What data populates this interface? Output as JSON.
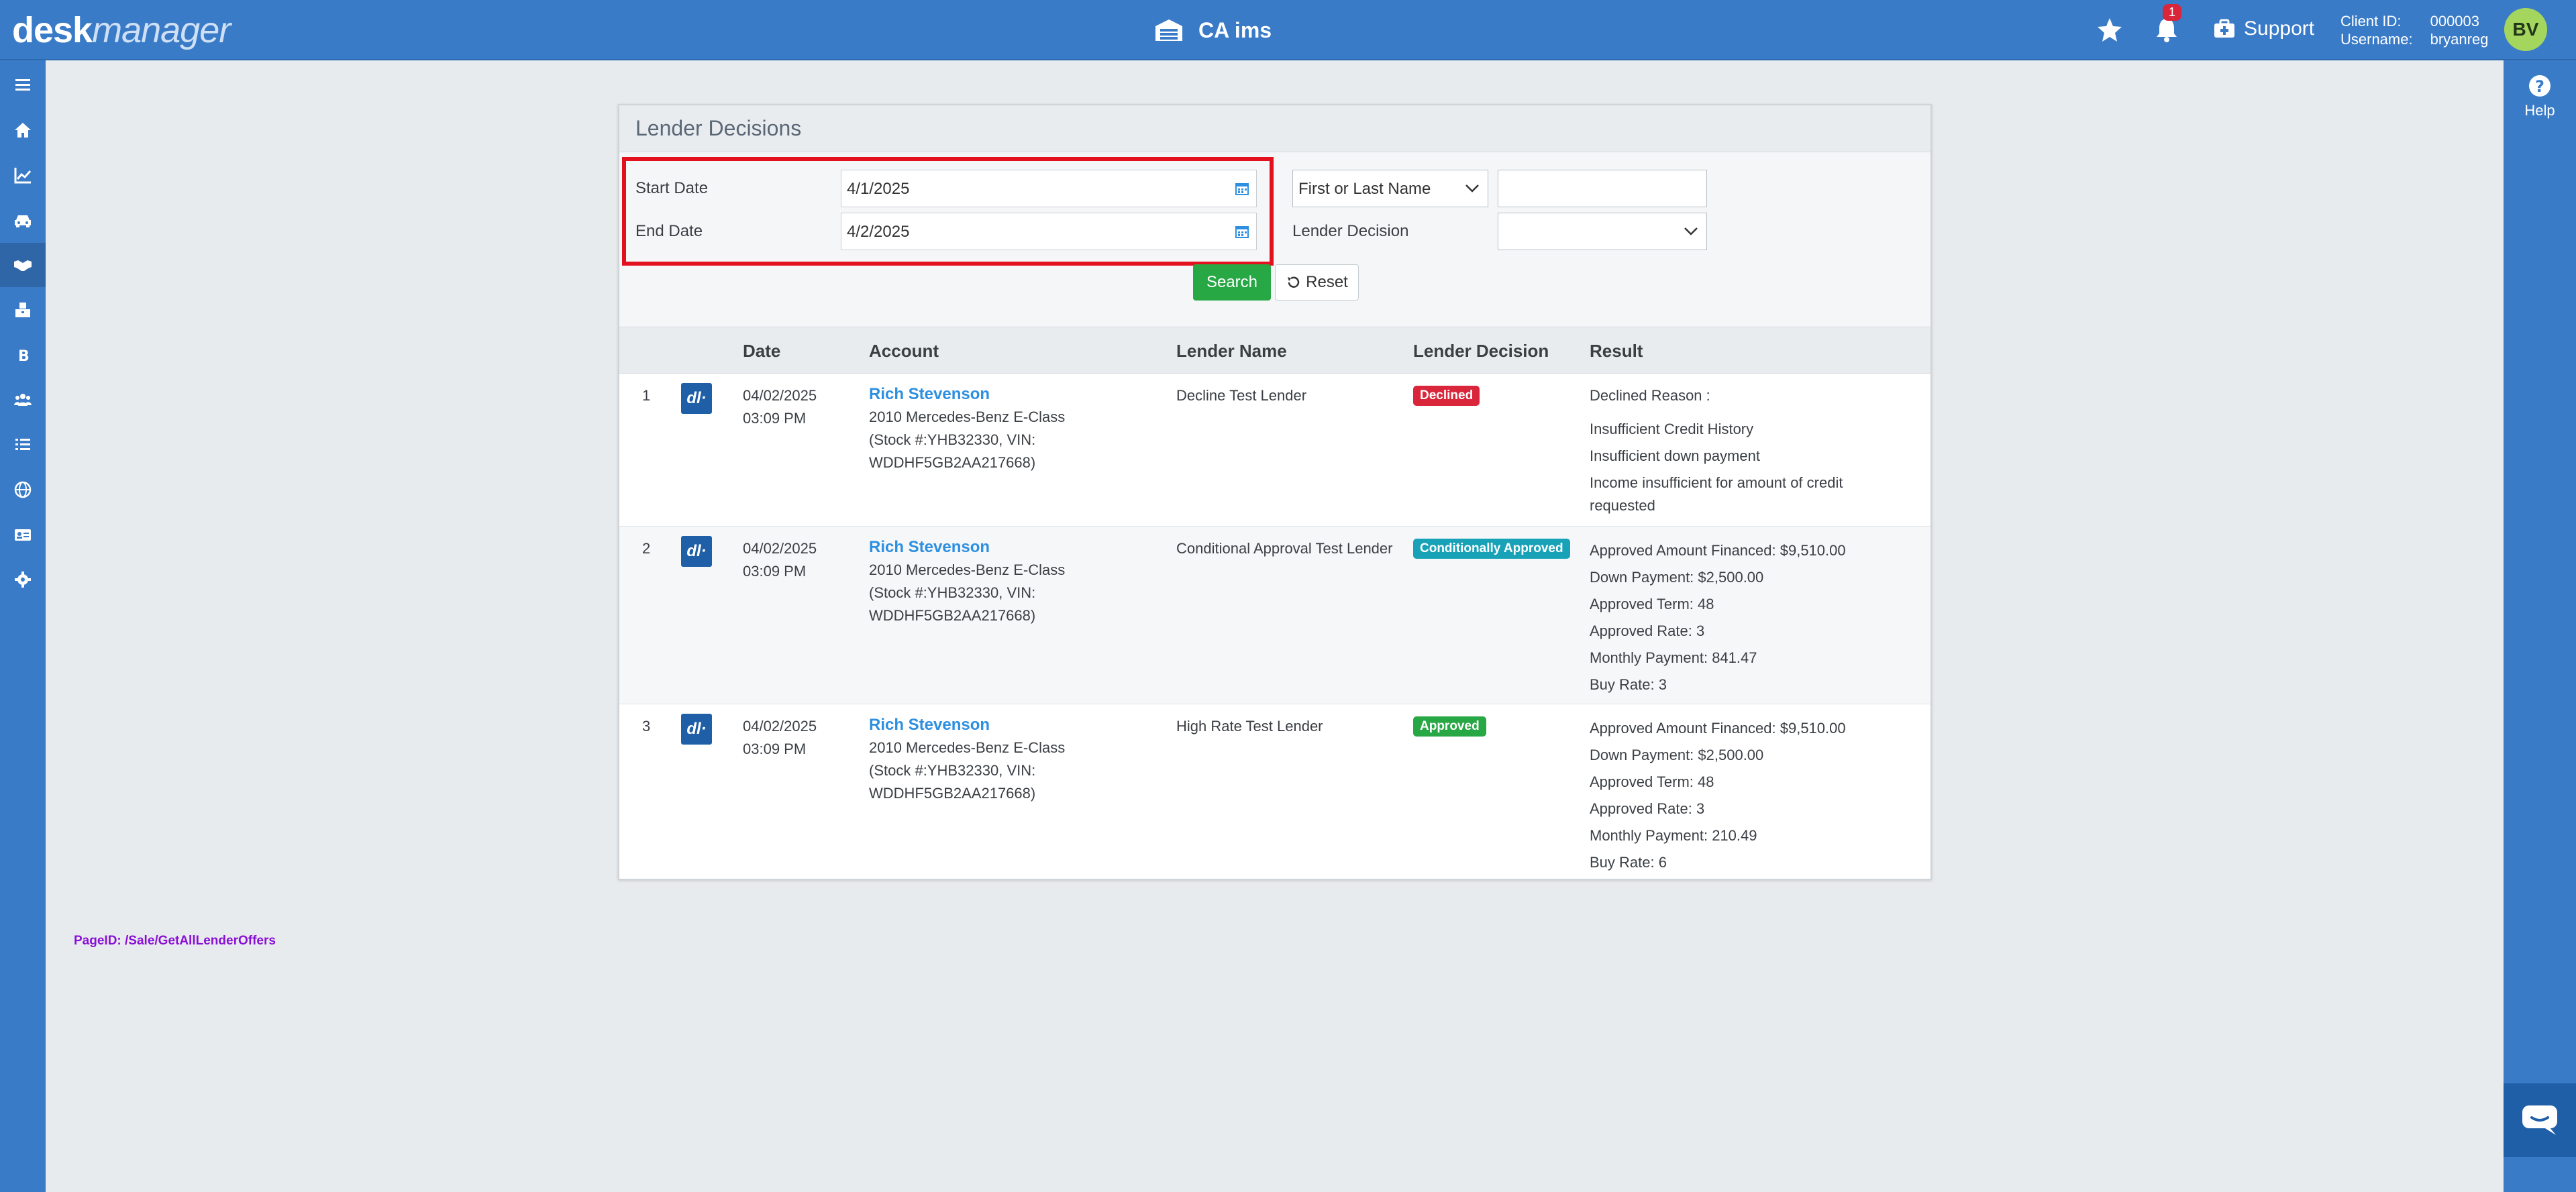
{
  "header": {
    "logo_desk": "desk",
    "logo_manager": "manager",
    "app_title": "CA ims",
    "notification_count": "1",
    "support_label": "Support",
    "client_id_label": "Client ID:",
    "client_id_value": "000003",
    "username_label": "Username:",
    "username_value": "bryanreg",
    "avatar_initials": "BV"
  },
  "sidebar": {
    "items": [
      {
        "icon": "menu-icon"
      },
      {
        "icon": "home-icon"
      },
      {
        "icon": "chart-icon"
      },
      {
        "icon": "car-icon"
      },
      {
        "icon": "handshake-icon",
        "active": true
      },
      {
        "icon": "inventory-icon"
      },
      {
        "icon": "bold-b-icon"
      },
      {
        "icon": "users-icon"
      },
      {
        "icon": "checklist-icon"
      },
      {
        "icon": "globe-icon"
      },
      {
        "icon": "id-card-icon"
      },
      {
        "icon": "gear-icon"
      }
    ]
  },
  "help_label": "Help",
  "panel": {
    "title": "Lender Decisions",
    "filters": {
      "start_date_label": "Start Date",
      "start_date_value": "4/1/2025",
      "end_date_label": "End Date",
      "end_date_value": "4/2/2025",
      "name_select_value": "First or Last Name",
      "name_text_value": "",
      "lender_decision_label": "Lender Decision",
      "lender_decision_value": "",
      "search_label": "Search",
      "reset_label": "Reset"
    },
    "columns": [
      "Date",
      "Account",
      "Lender Name",
      "Lender Decision",
      "Result"
    ],
    "rows": [
      {
        "num": "1",
        "icon_text": "dl·",
        "date": "04/02/2025",
        "time": "03:09 PM",
        "account_name": "Rich Stevenson",
        "vehicle": "2010 Mercedes-Benz E-Class",
        "stock": "(Stock #:YHB32330, VIN:",
        "vin": "WDDHF5GB2AA217668)",
        "lender": "Decline Test Lender",
        "decision": "Declined",
        "decision_color": "#d9263b",
        "result": {
          "l1": "Declined Reason :",
          "l2": "Insufficient Credit History",
          "l3": "Insufficient down payment",
          "l4": "Income insufficient for amount of credit",
          "l5": "requested"
        }
      },
      {
        "num": "2",
        "icon_text": "dl·",
        "date": "04/02/2025",
        "time": "03:09 PM",
        "account_name": "Rich Stevenson",
        "vehicle": "2010 Mercedes-Benz E-Class",
        "stock": "(Stock #:YHB32330, VIN:",
        "vin": "WDDHF5GB2AA217668)",
        "lender": "Conditional Approval Test Lender",
        "decision": "Conditionally Approved",
        "decision_color": "#17a2b8",
        "result": {
          "l1": "Approved Amount Financed: $9,510.00",
          "l2": "Down Payment: $2,500.00",
          "l3": "Approved Term: 48",
          "l4": "Approved Rate: 3",
          "l5": "Monthly Payment: 841.47",
          "l6": "Buy Rate: 3"
        }
      },
      {
        "num": "3",
        "icon_text": "dl·",
        "date": "04/02/2025",
        "time": "03:09 PM",
        "account_name": "Rich Stevenson",
        "vehicle": "2010 Mercedes-Benz E-Class",
        "stock": "(Stock #:YHB32330, VIN:",
        "vin": "WDDHF5GB2AA217668)",
        "lender": "High Rate Test Lender",
        "decision": "Approved",
        "decision_color": "#28a745",
        "result": {
          "l1": "Approved Amount Financed: $9,510.00",
          "l2": "Down Payment: $2,500.00",
          "l3": "Approved Term: 48",
          "l4": "Approved Rate: 3",
          "l5": "Monthly Payment: 210.49",
          "l6": "Buy Rate: 6"
        }
      }
    ]
  },
  "page_id": "PageID:  /Sale/GetAllLenderOffers"
}
